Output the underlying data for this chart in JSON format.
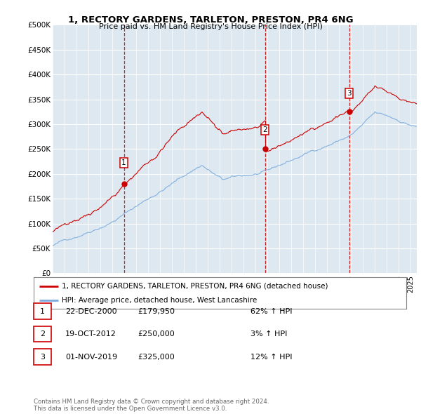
{
  "title": "1, RECTORY GARDENS, TARLETON, PRESTON, PR4 6NG",
  "subtitle": "Price paid vs. HM Land Registry's House Price Index (HPI)",
  "ylabel_ticks": [
    "£0",
    "£50K",
    "£100K",
    "£150K",
    "£200K",
    "£250K",
    "£300K",
    "£350K",
    "£400K",
    "£450K",
    "£500K"
  ],
  "ytick_values": [
    0,
    50000,
    100000,
    150000,
    200000,
    250000,
    300000,
    350000,
    400000,
    450000,
    500000
  ],
  "ylim": [
    0,
    500000
  ],
  "sale_dates_num": [
    2000.97,
    2012.8,
    2019.83
  ],
  "sale_prices": [
    179950,
    250000,
    325000
  ],
  "sale_labels": [
    "1",
    "2",
    "3"
  ],
  "vline_color": "#cc0000",
  "sale_marker_color": "#cc0000",
  "hpi_line_color": "#7aaadd",
  "price_line_color": "#cc0000",
  "legend_label_price": "1, RECTORY GARDENS, TARLETON, PRESTON, PR4 6NG (detached house)",
  "legend_label_hpi": "HPI: Average price, detached house, West Lancashire",
  "table_rows": [
    [
      "1",
      "22-DEC-2000",
      "£179,950",
      "62% ↑ HPI"
    ],
    [
      "2",
      "19-OCT-2012",
      "£250,000",
      "3% ↑ HPI"
    ],
    [
      "3",
      "01-NOV-2019",
      "£325,000",
      "12% ↑ HPI"
    ]
  ],
  "footer": "Contains HM Land Registry data © Crown copyright and database right 2024.\nThis data is licensed under the Open Government Licence v3.0.",
  "bg_color": "#ffffff",
  "plot_bg_color": "#dde8f0",
  "grid_color": "#ffffff",
  "xlim_start": 1995.0,
  "xlim_end": 2025.5
}
